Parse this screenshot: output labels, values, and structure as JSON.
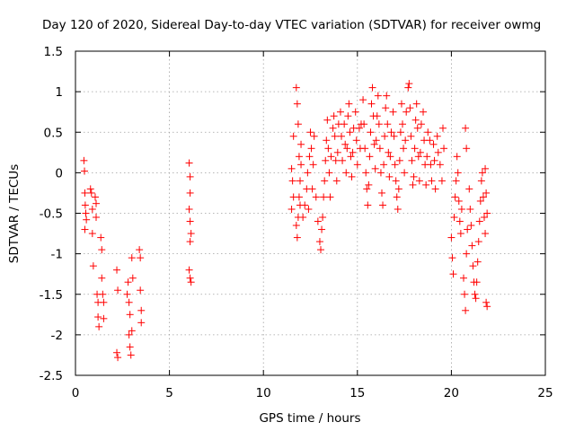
{
  "chart_data": {
    "type": "scatter",
    "title": "Day 120 of 2020, Sidereal Day-to-day VTEC variation (SDTVAR) for receiver owmg",
    "xlabel": "GPS time / hours",
    "ylabel": "SDTVAR / TECUs",
    "xlim": [
      0,
      25
    ],
    "ylim": [
      -2.5,
      1.5
    ],
    "xticks": [
      0,
      5,
      10,
      15,
      20,
      25
    ],
    "yticks": [
      -2.5,
      -2,
      -1.5,
      -1,
      -0.5,
      0,
      0.5,
      1,
      1.5
    ],
    "xtick_labels": [
      "0",
      "5",
      "10",
      "15",
      "20",
      "25"
    ],
    "ytick_labels": [
      "-2.5",
      "-2",
      "-1.5",
      "-1",
      "-0.5",
      "0",
      "0.5",
      "1",
      "1.5"
    ],
    "grid": true,
    "marker": "+",
    "marker_color": "#ff0000",
    "series": [
      {
        "name": "SDTVAR",
        "points": [
          [
            0.45,
            0.15
          ],
          [
            0.48,
            0.02
          ],
          [
            0.5,
            -0.25
          ],
          [
            0.52,
            -0.4
          ],
          [
            0.55,
            -0.5
          ],
          [
            0.58,
            -0.58
          ],
          [
            0.5,
            -0.7
          ],
          [
            0.8,
            -0.2
          ],
          [
            0.85,
            -0.25
          ],
          [
            0.9,
            -0.45
          ],
          [
            0.9,
            -0.75
          ],
          [
            0.95,
            -1.15
          ],
          [
            1.05,
            -0.3
          ],
          [
            1.1,
            -0.38
          ],
          [
            1.1,
            -0.55
          ],
          [
            1.15,
            -1.5
          ],
          [
            1.2,
            -1.6
          ],
          [
            1.2,
            -1.78
          ],
          [
            1.25,
            -1.9
          ],
          [
            1.35,
            -0.8
          ],
          [
            1.4,
            -0.95
          ],
          [
            1.4,
            -1.3
          ],
          [
            1.45,
            -1.5
          ],
          [
            1.5,
            -1.6
          ],
          [
            1.5,
            -1.8
          ],
          [
            2.2,
            -1.2
          ],
          [
            2.25,
            -1.45
          ],
          [
            2.2,
            -2.22
          ],
          [
            2.25,
            -2.28
          ],
          [
            2.75,
            -1.5
          ],
          [
            2.8,
            -1.35
          ],
          [
            2.85,
            -1.6
          ],
          [
            2.9,
            -1.75
          ],
          [
            2.85,
            -2.0
          ],
          [
            2.9,
            -2.15
          ],
          [
            2.95,
            -2.25
          ],
          [
            3.0,
            -1.05
          ],
          [
            3.05,
            -1.3
          ],
          [
            3.0,
            -1.95
          ],
          [
            3.4,
            -0.95
          ],
          [
            3.45,
            -1.05
          ],
          [
            3.45,
            -1.45
          ],
          [
            3.5,
            -1.7
          ],
          [
            3.5,
            -1.85
          ],
          [
            6.05,
            0.12
          ],
          [
            6.1,
            -0.05
          ],
          [
            6.1,
            -0.25
          ],
          [
            6.05,
            -0.45
          ],
          [
            6.1,
            -0.6
          ],
          [
            6.15,
            -0.75
          ],
          [
            6.1,
            -0.85
          ],
          [
            6.05,
            -1.2
          ],
          [
            6.1,
            -1.3
          ],
          [
            6.15,
            -1.35
          ],
          [
            11.5,
            0.05
          ],
          [
            11.55,
            -0.1
          ],
          [
            11.6,
            -0.3
          ],
          [
            11.5,
            -0.45
          ],
          [
            11.6,
            0.45
          ],
          [
            11.75,
            -0.65
          ],
          [
            11.8,
            -0.8
          ],
          [
            11.85,
            -0.55
          ],
          [
            11.9,
            -0.3
          ],
          [
            11.95,
            -0.1
          ],
          [
            12.0,
            0.1
          ],
          [
            12.0,
            0.35
          ],
          [
            11.75,
            1.05
          ],
          [
            11.8,
            0.85
          ],
          [
            11.85,
            0.6
          ],
          [
            11.9,
            0.2
          ],
          [
            11.95,
            -0.4
          ],
          [
            12.1,
            -0.55
          ],
          [
            12.2,
            -0.4
          ],
          [
            12.3,
            -0.2
          ],
          [
            12.35,
            0.0
          ],
          [
            12.4,
            -0.45
          ],
          [
            12.45,
            0.2
          ],
          [
            12.5,
            0.5
          ],
          [
            12.55,
            0.3
          ],
          [
            12.6,
            -0.2
          ],
          [
            12.65,
            0.1
          ],
          [
            12.7,
            0.45
          ],
          [
            12.8,
            -0.3
          ],
          [
            12.9,
            -0.6
          ],
          [
            13.0,
            -0.85
          ],
          [
            13.05,
            -0.95
          ],
          [
            13.1,
            -0.7
          ],
          [
            13.15,
            -0.55
          ],
          [
            13.2,
            -0.3
          ],
          [
            13.25,
            -0.1
          ],
          [
            13.3,
            0.15
          ],
          [
            13.35,
            0.4
          ],
          [
            13.4,
            0.65
          ],
          [
            13.45,
            0.3
          ],
          [
            13.5,
            0.0
          ],
          [
            13.55,
            -0.3
          ],
          [
            13.6,
            0.2
          ],
          [
            13.7,
            0.55
          ],
          [
            13.75,
            0.7
          ],
          [
            13.8,
            0.45
          ],
          [
            13.85,
            0.15
          ],
          [
            13.9,
            -0.1
          ],
          [
            13.95,
            0.25
          ],
          [
            14.0,
            0.6
          ],
          [
            14.1,
            0.75
          ],
          [
            14.15,
            0.45
          ],
          [
            14.2,
            0.15
          ],
          [
            14.3,
            0.6
          ],
          [
            14.35,
            0.35
          ],
          [
            14.4,
            0.0
          ],
          [
            14.45,
            0.3
          ],
          [
            14.5,
            0.7
          ],
          [
            14.55,
            0.85
          ],
          [
            14.6,
            0.5
          ],
          [
            14.65,
            0.2
          ],
          [
            14.7,
            -0.05
          ],
          [
            14.75,
            0.25
          ],
          [
            14.8,
            0.55
          ],
          [
            14.9,
            0.75
          ],
          [
            14.95,
            0.4
          ],
          [
            15.0,
            0.1
          ],
          [
            15.1,
            0.55
          ],
          [
            15.15,
            0.3
          ],
          [
            15.2,
            0.6
          ],
          [
            15.3,
            0.9
          ],
          [
            15.35,
            0.6
          ],
          [
            15.4,
            0.3
          ],
          [
            15.45,
            0.0
          ],
          [
            15.5,
            -0.2
          ],
          [
            15.55,
            -0.4
          ],
          [
            15.6,
            -0.15
          ],
          [
            15.65,
            0.2
          ],
          [
            15.7,
            0.5
          ],
          [
            15.75,
            0.85
          ],
          [
            15.8,
            1.05
          ],
          [
            15.85,
            0.7
          ],
          [
            15.9,
            0.35
          ],
          [
            15.95,
            0.05
          ],
          [
            16.0,
            0.4
          ],
          [
            16.05,
            0.7
          ],
          [
            16.1,
            0.95
          ],
          [
            16.15,
            0.6
          ],
          [
            16.2,
            0.3
          ],
          [
            16.25,
            0.0
          ],
          [
            16.3,
            -0.25
          ],
          [
            16.35,
            -0.4
          ],
          [
            16.4,
            0.1
          ],
          [
            16.45,
            0.45
          ],
          [
            16.5,
            0.8
          ],
          [
            16.55,
            0.95
          ],
          [
            16.6,
            0.6
          ],
          [
            16.65,
            0.25
          ],
          [
            16.7,
            -0.05
          ],
          [
            16.75,
            0.2
          ],
          [
            16.8,
            0.5
          ],
          [
            16.9,
            0.75
          ],
          [
            16.95,
            0.45
          ],
          [
            17.0,
            0.1
          ],
          [
            17.05,
            -0.1
          ],
          [
            17.1,
            -0.3
          ],
          [
            17.15,
            -0.45
          ],
          [
            17.2,
            -0.2
          ],
          [
            17.25,
            0.15
          ],
          [
            17.3,
            0.5
          ],
          [
            17.35,
            0.85
          ],
          [
            17.4,
            0.6
          ],
          [
            17.45,
            0.3
          ],
          [
            17.5,
            0.0
          ],
          [
            17.55,
            0.4
          ],
          [
            17.6,
            0.75
          ],
          [
            17.7,
            1.05
          ],
          [
            17.75,
            1.1
          ],
          [
            17.8,
            0.8
          ],
          [
            17.85,
            0.45
          ],
          [
            17.9,
            0.15
          ],
          [
            17.95,
            -0.15
          ],
          [
            18.0,
            -0.05
          ],
          [
            18.05,
            0.3
          ],
          [
            18.1,
            0.65
          ],
          [
            18.15,
            0.85
          ],
          [
            18.2,
            0.55
          ],
          [
            18.25,
            0.2
          ],
          [
            18.3,
            -0.1
          ],
          [
            18.35,
            0.25
          ],
          [
            18.4,
            0.6
          ],
          [
            18.5,
            0.75
          ],
          [
            18.55,
            0.4
          ],
          [
            18.6,
            0.1
          ],
          [
            18.65,
            -0.15
          ],
          [
            18.7,
            0.2
          ],
          [
            18.75,
            0.5
          ],
          [
            18.85,
            0.4
          ],
          [
            18.9,
            0.1
          ],
          [
            18.95,
            -0.1
          ],
          [
            19.05,
            0.35
          ],
          [
            19.1,
            0.15
          ],
          [
            19.15,
            -0.2
          ],
          [
            19.25,
            0.45
          ],
          [
            19.3,
            0.25
          ],
          [
            19.4,
            0.1
          ],
          [
            19.5,
            -0.1
          ],
          [
            19.55,
            0.55
          ],
          [
            19.6,
            0.3
          ],
          [
            20.0,
            -0.8
          ],
          [
            20.05,
            -1.05
          ],
          [
            20.1,
            -1.25
          ],
          [
            20.15,
            -0.55
          ],
          [
            20.2,
            -0.3
          ],
          [
            20.25,
            -0.1
          ],
          [
            20.3,
            0.2
          ],
          [
            20.35,
            0.0
          ],
          [
            20.4,
            -0.35
          ],
          [
            20.45,
            -0.6
          ],
          [
            20.5,
            -0.75
          ],
          [
            20.55,
            -0.45
          ],
          [
            20.65,
            -1.3
          ],
          [
            20.7,
            -1.5
          ],
          [
            20.75,
            -1.7
          ],
          [
            20.8,
            -1.0
          ],
          [
            20.85,
            -0.7
          ],
          [
            20.75,
            0.55
          ],
          [
            20.8,
            0.3
          ],
          [
            20.95,
            -0.2
          ],
          [
            21.0,
            -0.45
          ],
          [
            21.05,
            -0.65
          ],
          [
            21.1,
            -0.9
          ],
          [
            21.15,
            -1.15
          ],
          [
            21.2,
            -1.35
          ],
          [
            21.25,
            -1.5
          ],
          [
            21.3,
            -1.55
          ],
          [
            21.35,
            -1.35
          ],
          [
            21.4,
            -1.1
          ],
          [
            21.45,
            -0.85
          ],
          [
            21.5,
            -0.6
          ],
          [
            21.55,
            -0.35
          ],
          [
            21.6,
            -0.1
          ],
          [
            21.65,
            0.0
          ],
          [
            21.7,
            -0.3
          ],
          [
            21.75,
            -0.55
          ],
          [
            21.8,
            -0.75
          ],
          [
            21.85,
            -1.6
          ],
          [
            21.9,
            -1.65
          ],
          [
            21.8,
            0.05
          ],
          [
            21.85,
            -0.25
          ],
          [
            21.9,
            -0.5
          ]
        ]
      }
    ]
  }
}
